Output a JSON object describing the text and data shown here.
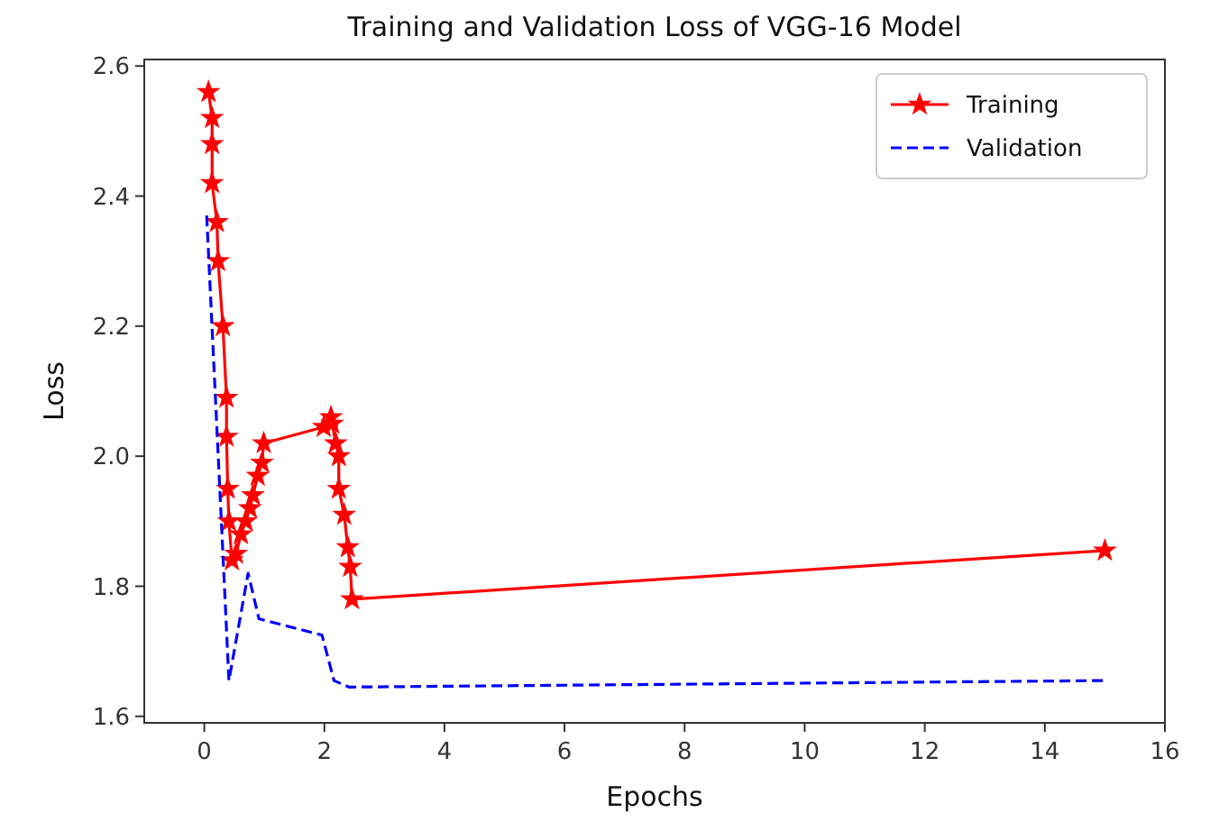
{
  "chart_data": {
    "type": "line",
    "title": "Training and Validation Loss of VGG-16 Model",
    "xlabel": "Epochs",
    "ylabel": "Loss",
    "xlim": [
      -1,
      16
    ],
    "xticks": [
      0,
      2,
      4,
      6,
      8,
      10,
      12,
      14,
      16
    ],
    "ylim": [
      1.59,
      2.61
    ],
    "yticks": [
      {
        "value": 1.6,
        "label": "1.6"
      },
      {
        "value": 1.8,
        "label": "1.8"
      },
      {
        "value": 2.0,
        "label": "2.0"
      },
      {
        "value": 2.2,
        "label": "2.2"
      },
      {
        "value": 2.4,
        "label": "2.4"
      },
      {
        "value": 2.6,
        "label": "2.6"
      }
    ],
    "grid": false,
    "legend": "top right",
    "series": [
      {
        "name": "Training",
        "color": "#ff0000",
        "marker": "star",
        "line_style": "solid",
        "x": [
          0.07,
          0.13,
          0.13,
          0.13,
          0.21,
          0.23,
          0.31,
          0.37,
          0.37,
          0.39,
          0.41,
          0.46,
          0.53,
          0.61,
          0.69,
          0.76,
          0.81,
          0.89,
          0.96,
          0.99,
          1.99,
          2.11,
          2.13,
          2.19,
          2.24,
          2.24,
          2.33,
          2.39,
          2.43,
          2.46,
          15.0
        ],
        "values": [
          2.56,
          2.52,
          2.48,
          2.42,
          2.36,
          2.3,
          2.2,
          2.09,
          2.03,
          1.95,
          1.9,
          1.84,
          1.85,
          1.88,
          1.9,
          1.92,
          1.94,
          1.97,
          1.99,
          2.02,
          2.045,
          2.06,
          2.05,
          2.02,
          2.0,
          1.95,
          1.91,
          1.86,
          1.83,
          1.78,
          1.855
        ]
      },
      {
        "name": "Validation",
        "color": "#0000ff",
        "marker": "none",
        "line_style": "dashed",
        "x": [
          0.04,
          0.31,
          0.41,
          0.73,
          0.91,
          1.96,
          2.16,
          2.41,
          15.0
        ],
        "values": [
          2.37,
          1.85,
          1.655,
          1.82,
          1.75,
          1.725,
          1.655,
          1.645,
          1.655
        ]
      }
    ]
  }
}
